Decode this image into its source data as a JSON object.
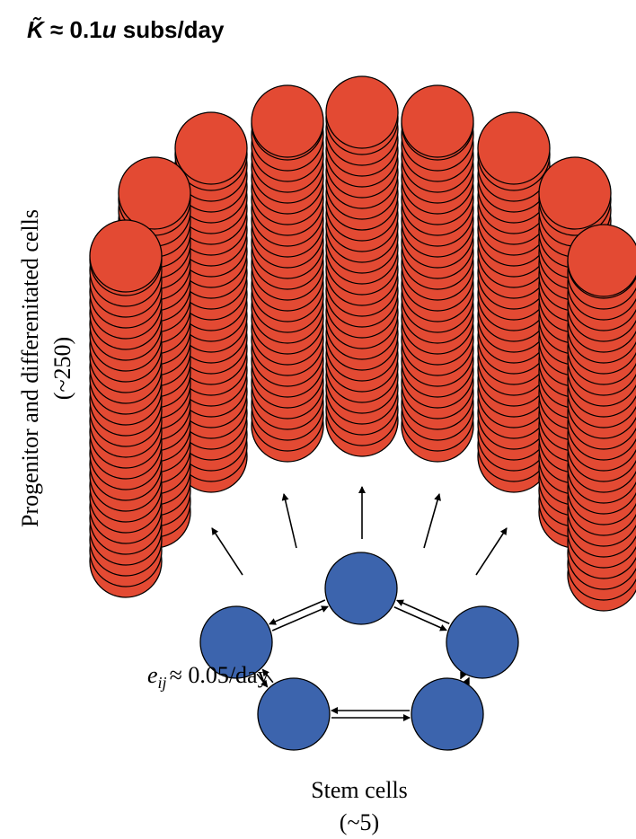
{
  "title": {
    "symbol": "K̃",
    "approx": " ≈ 0.1",
    "variable": "u",
    "unit": " subs/day"
  },
  "progenitor_label": {
    "line1": "Progenitor and differenitated cells",
    "line2": "(~250)"
  },
  "rate_label": {
    "symbol": "e",
    "subscript": "ij",
    "value": "≈ 0.05/day"
  },
  "stem_label": {
    "line1": "Stem cells",
    "line2": "(~5)"
  }
}
